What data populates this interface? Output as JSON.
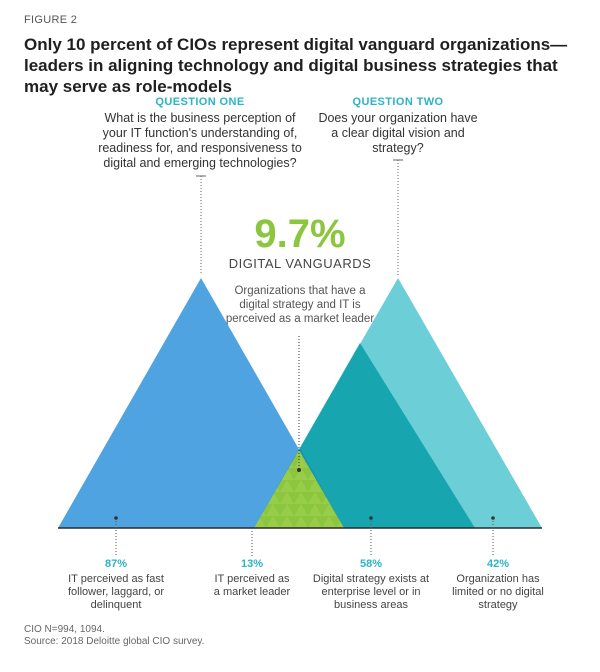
{
  "figure_label": "FIGURE 2",
  "title": "Only 10 percent of CIOs represent digital vanguard organizations—leaders in aligning technology and digital business strategies that may serve as role-models",
  "question_one": {
    "heading": "QUESTION ONE",
    "text": "What is the business perception of your IT function's understanding of, readiness for, and responsiveness to digital and emerging technologies?"
  },
  "question_two": {
    "heading": "QUESTION TWO",
    "text": "Does your organization have a clear digital vision and strategy?"
  },
  "highlight": {
    "percent": "9.7%",
    "label": "DIGITAL VANGUARDS",
    "description": "Organizations that have a digital strategy and IT is perceived as a market leader"
  },
  "stats": [
    {
      "percent": "87%",
      "description": "IT perceived as fast follower, laggard, or delinquent"
    },
    {
      "percent": "13%",
      "description": "IT perceived as a market leader"
    },
    {
      "percent": "58%",
      "description": "Digital strategy exists at enterprise level or in business areas"
    },
    {
      "percent": "42%",
      "description": "Organization has limited or no digital strategy"
    }
  ],
  "footer": {
    "sample": "CIO N=994, 1094.",
    "source": "Source: 2018 Deloitte global CIO survey."
  },
  "colors": {
    "blue_triangle": "#4fa3e0",
    "teal_triangle": "#6ccfd8",
    "teal_dark": "#17a6b0",
    "overlap_dark": "#1a7fbf",
    "vanguard_green": "#8cc63f",
    "accent_teal": "#2bb3c8"
  }
}
